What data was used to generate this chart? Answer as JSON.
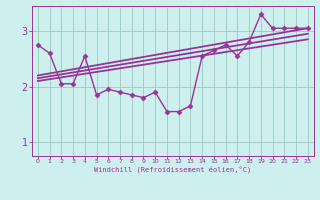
{
  "xlabel": "Windchill (Refroidissement éolien,°C)",
  "bg_color": "#cdf0ee",
  "grid_color": "#99ccbb",
  "line_color": "#993399",
  "spine_color": "#993399",
  "x_ticks": [
    0,
    1,
    2,
    3,
    4,
    5,
    6,
    7,
    8,
    9,
    10,
    11,
    12,
    13,
    14,
    15,
    16,
    17,
    18,
    19,
    20,
    21,
    22,
    23
  ],
  "y_ticks": [
    1,
    2,
    3
  ],
  "ylim": [
    0.75,
    3.45
  ],
  "xlim": [
    -0.5,
    23.5
  ],
  "series": [
    {
      "x": [
        0,
        1,
        2,
        3,
        4,
        5,
        6,
        7,
        8,
        9,
        10,
        11,
        12,
        13,
        14,
        15,
        16,
        17,
        18,
        19,
        20,
        21,
        22,
        23
      ],
      "y": [
        2.75,
        2.6,
        2.05,
        2.05,
        2.55,
        1.85,
        1.95,
        1.9,
        1.85,
        1.8,
        1.9,
        1.55,
        1.55,
        1.65,
        2.55,
        2.65,
        2.75,
        2.55,
        2.8,
        3.3,
        3.05,
        3.05,
        3.05,
        3.05
      ],
      "marker": "D",
      "ms": 2.5,
      "lw": 1.0
    },
    {
      "x": [
        0,
        23
      ],
      "y": [
        2.2,
        3.05
      ],
      "marker": null,
      "ms": 0,
      "lw": 1.3
    },
    {
      "x": [
        0,
        23
      ],
      "y": [
        2.15,
        2.95
      ],
      "marker": null,
      "ms": 0,
      "lw": 1.3
    },
    {
      "x": [
        0,
        23
      ],
      "y": [
        2.1,
        2.85
      ],
      "marker": null,
      "ms": 0,
      "lw": 1.3
    }
  ]
}
